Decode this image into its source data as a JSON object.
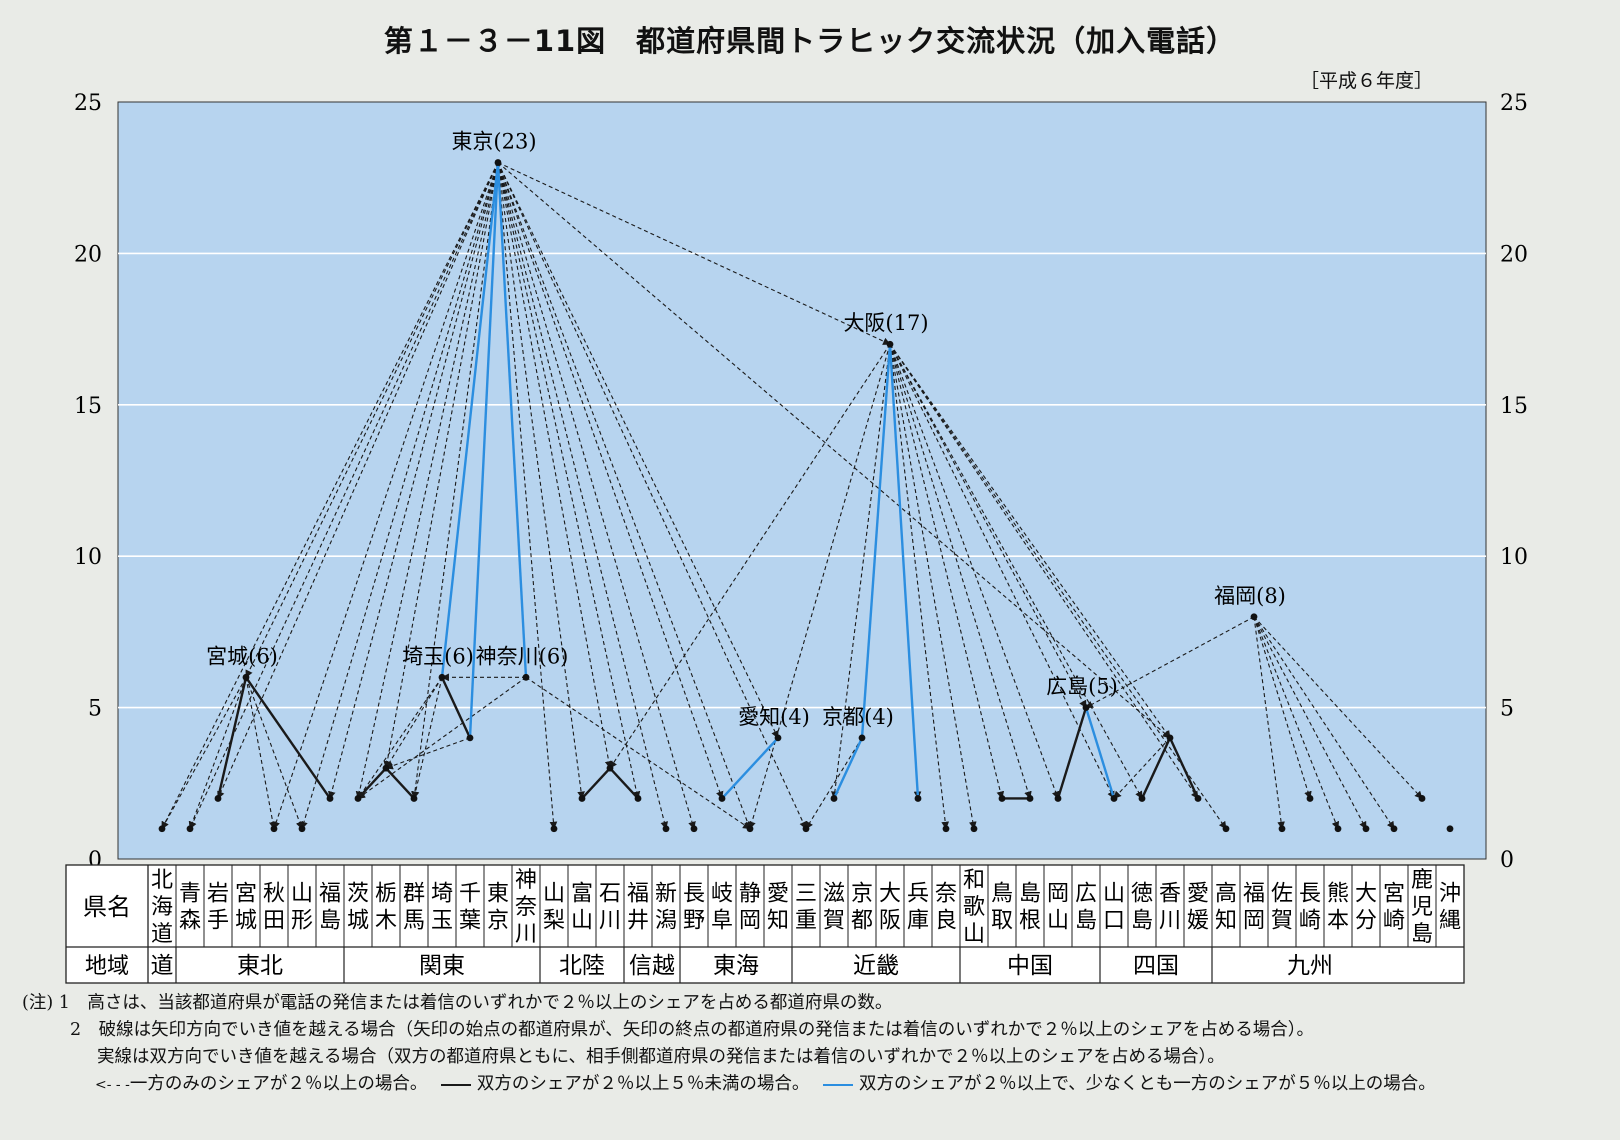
{
  "title": "第１－３－11図　都道府県間トラヒック交流状況（加入電話）",
  "period": "［平成６年度］",
  "colors": {
    "plot_bg": "#b7d4ef",
    "grid": "#ffffff",
    "solid_black": "#1a1a1a",
    "solid_blue": "#2b8ee0",
    "dashed": "#1a1a1a"
  },
  "chart_data": {
    "type": "network",
    "ylim": [
      0,
      25
    ],
    "yticks": [
      0,
      5,
      10,
      15,
      20,
      25
    ],
    "grid": true,
    "prefectures": [
      {
        "name": "北海道",
        "value": 1
      },
      {
        "name": "青森",
        "value": 1
      },
      {
        "name": "岩手",
        "value": 2
      },
      {
        "name": "宮城",
        "value": 6
      },
      {
        "name": "秋田",
        "value": 1
      },
      {
        "name": "山形",
        "value": 1
      },
      {
        "name": "福島",
        "value": 2
      },
      {
        "name": "茨城",
        "value": 2
      },
      {
        "name": "栃木",
        "value": 3
      },
      {
        "name": "群馬",
        "value": 2
      },
      {
        "name": "埼玉",
        "value": 6
      },
      {
        "name": "千葉",
        "value": 4
      },
      {
        "name": "東京",
        "value": 23
      },
      {
        "name": "神奈川",
        "value": 6
      },
      {
        "name": "山梨",
        "value": 1
      },
      {
        "name": "富山",
        "value": 2
      },
      {
        "name": "石川",
        "value": 3
      },
      {
        "name": "福井",
        "value": 2
      },
      {
        "name": "新潟",
        "value": 1
      },
      {
        "name": "長野",
        "value": 1
      },
      {
        "name": "岐阜",
        "value": 2
      },
      {
        "name": "静岡",
        "value": 1
      },
      {
        "name": "愛知",
        "value": 4
      },
      {
        "name": "三重",
        "value": 1
      },
      {
        "name": "滋賀",
        "value": 2
      },
      {
        "name": "京都",
        "value": 4
      },
      {
        "name": "大阪",
        "value": 17
      },
      {
        "name": "兵庫",
        "value": 2
      },
      {
        "name": "奈良",
        "value": 1
      },
      {
        "name": "和歌山",
        "value": 1
      },
      {
        "name": "鳥取",
        "value": 2
      },
      {
        "name": "島根",
        "value": 2
      },
      {
        "name": "岡山",
        "value": 2
      },
      {
        "name": "広島",
        "value": 5
      },
      {
        "name": "山口",
        "value": 2
      },
      {
        "name": "徳島",
        "value": 2
      },
      {
        "name": "香川",
        "value": 4
      },
      {
        "name": "愛媛",
        "value": 2
      },
      {
        "name": "高知",
        "value": 1
      },
      {
        "name": "福岡",
        "value": 8
      },
      {
        "name": "佐賀",
        "value": 1
      },
      {
        "name": "長崎",
        "value": 2
      },
      {
        "name": "熊本",
        "value": 1
      },
      {
        "name": "大分",
        "value": 1
      },
      {
        "name": "宮崎",
        "value": 1
      },
      {
        "name": "鹿児島",
        "value": 2
      },
      {
        "name": "沖縄",
        "value": 1
      }
    ],
    "table_labels": [
      "県名",
      "地域"
    ],
    "regions": [
      {
        "name": "道",
        "span": 1
      },
      {
        "name": "東北",
        "span": 6
      },
      {
        "name": "関東",
        "span": 7
      },
      {
        "name": "北陸",
        "span": 3
      },
      {
        "name": "信越",
        "span": 2
      },
      {
        "name": "東海",
        "span": 4
      },
      {
        "name": "近畿",
        "span": 6
      },
      {
        "name": "中国",
        "span": 5
      },
      {
        "name": "四国",
        "span": 4
      },
      {
        "name": "九州",
        "span": 7
      }
    ],
    "node_labels": [
      {
        "text": "東京(23)",
        "node": 12
      },
      {
        "text": "大阪(17)",
        "node": 26
      },
      {
        "text": "福岡(8)",
        "node": 39
      },
      {
        "text": "宮城(6)",
        "node": 3
      },
      {
        "text": "埼玉(6)",
        "node": 10
      },
      {
        "text": "神奈川(6)",
        "node": 13
      },
      {
        "text": "広島(5)",
        "node": 33
      },
      {
        "text": "愛知(4)",
        "node": 22
      },
      {
        "text": "京都(4)",
        "node": 25
      }
    ],
    "edges_dashed": [
      [
        12,
        0
      ],
      [
        12,
        1
      ],
      [
        12,
        2
      ],
      [
        12,
        3
      ],
      [
        12,
        4
      ],
      [
        12,
        5
      ],
      [
        12,
        6
      ],
      [
        12,
        7
      ],
      [
        12,
        8
      ],
      [
        12,
        9
      ],
      [
        12,
        14
      ],
      [
        12,
        15
      ],
      [
        12,
        16
      ],
      [
        12,
        17
      ],
      [
        12,
        18
      ],
      [
        12,
        19
      ],
      [
        12,
        20
      ],
      [
        12,
        21
      ],
      [
        12,
        22
      ],
      [
        12,
        23
      ],
      [
        12,
        26
      ],
      [
        12,
        36
      ],
      [
        26,
        16
      ],
      [
        26,
        21
      ],
      [
        26,
        24
      ],
      [
        26,
        27
      ],
      [
        26,
        28
      ],
      [
        26,
        29
      ],
      [
        26,
        30
      ],
      [
        26,
        31
      ],
      [
        26,
        32
      ],
      [
        26,
        33
      ],
      [
        26,
        34
      ],
      [
        26,
        35
      ],
      [
        26,
        36
      ],
      [
        26,
        37
      ],
      [
        26,
        38
      ],
      [
        39,
        33
      ],
      [
        39,
        40
      ],
      [
        39,
        41
      ],
      [
        39,
        42
      ],
      [
        39,
        43
      ],
      [
        39,
        44
      ],
      [
        39,
        45
      ],
      [
        3,
        0
      ],
      [
        3,
        1
      ],
      [
        3,
        4
      ],
      [
        3,
        5
      ],
      [
        10,
        7
      ],
      [
        10,
        8
      ],
      [
        10,
        9
      ],
      [
        11,
        8
      ],
      [
        13,
        7
      ],
      [
        13,
        10
      ],
      [
        13,
        21
      ],
      [
        25,
        23
      ],
      [
        36,
        34
      ]
    ],
    "edges_solid_black": [
      [
        3,
        2
      ],
      [
        3,
        6
      ],
      [
        8,
        7
      ],
      [
        8,
        9
      ],
      [
        10,
        11
      ],
      [
        16,
        15
      ],
      [
        16,
        17
      ],
      [
        30,
        31
      ],
      [
        33,
        32
      ],
      [
        36,
        35
      ],
      [
        36,
        37
      ]
    ],
    "edges_solid_blue": [
      [
        12,
        10
      ],
      [
        12,
        11
      ],
      [
        12,
        13
      ],
      [
        22,
        20
      ],
      [
        26,
        25
      ],
      [
        26,
        27
      ],
      [
        25,
        24
      ],
      [
        33,
        34
      ]
    ]
  },
  "notes": {
    "n1": "(注) 1　高さは、当該都道府県が電話の発信または着信のいずれかで２％以上のシェアを占める都道府県の数。",
    "n2": "2　破線は矢印方向でいき値を越える場合（矢印の始点の都道府県が、矢印の終点の都道府県の発信または着信のいずれかで２％以上のシェアを占める場合）。",
    "n3": "実線は双方向でいき値を越える場合（双方の都道府県ともに、相手側都道府県の発信または着信のいずれかで２％以上のシェアを占める場合）。",
    "legend_dashed": "一方のみのシェアが２％以上の場合。",
    "legend_black": "双方のシェアが２％以上５％未満の場合。",
    "legend_blue": "双方のシェアが２％以上で、少なくとも一方のシェアが５％以上の場合。"
  }
}
